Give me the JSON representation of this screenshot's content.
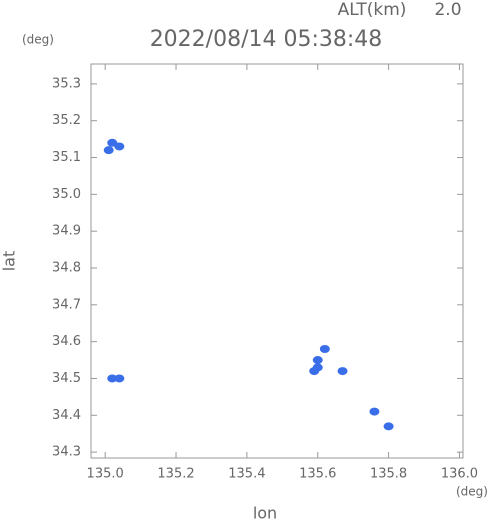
{
  "chart_data": {
    "type": "scatter",
    "title": "2022/08/14 05:38:48",
    "altitude_label": "ALT(km)",
    "altitude": "2.0",
    "x_label": "lon",
    "y_label": "lat",
    "x_unit": "(deg)",
    "y_unit": "(deg)",
    "x": [
      135.02,
      135.04,
      135.01,
      135.02,
      135.04,
      135.6,
      135.6,
      135.62,
      135.67,
      135.59,
      135.76,
      135.8
    ],
    "values": [
      35.14,
      35.13,
      35.12,
      34.5,
      34.5,
      34.55,
      34.53,
      34.58,
      34.52,
      34.52,
      34.41,
      34.37
    ],
    "color": "#3a6ee8",
    "xlim": [
      134.96,
      136.01
    ],
    "xticks": [
      {
        "value": 135,
        "label": "135.0"
      },
      135.2,
      135.4,
      135.6,
      135.8,
      {
        "value": 136,
        "label": "136.0"
      }
    ],
    "ylim": [
      34.284,
      35.354
    ],
    "yticks": [
      34.3,
      34.4,
      34.5,
      34.6,
      34.7,
      34.8,
      34.9,
      {
        "value": 35,
        "label": "35.0"
      },
      35.1,
      35.2,
      35.3
    ],
    "grid": false
  }
}
